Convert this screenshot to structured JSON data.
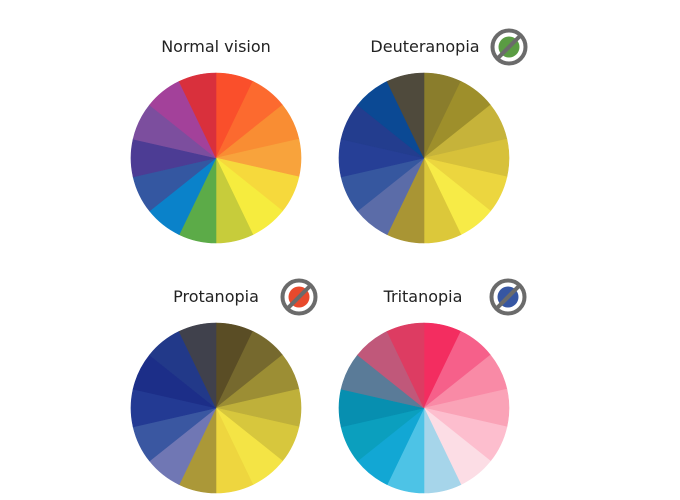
{
  "wheels": [
    {
      "title": "Normal vision",
      "badge": null,
      "colors": [
        "#fa4f2b",
        "#fc6a2f",
        "#f98d33",
        "#f8a33c",
        "#f6d93c",
        "#f6ec3e",
        "#c7cc3b",
        "#5cab48",
        "#0a82ca",
        "#3457a1",
        "#4c3c94",
        "#7c4e9e",
        "#a3419a",
        "#d9303c"
      ]
    },
    {
      "title": "Deuteranopia",
      "badge": {
        "icon": "deuteranopia-no-green-icon",
        "color": "#5a9c43"
      },
      "colors": [
        "#8a7d2c",
        "#9e8f2b",
        "#c6b33a",
        "#d7c13a",
        "#ecd63f",
        "#f7eb47",
        "#dcc83a",
        "#a99534",
        "#5b6ca8",
        "#36579f",
        "#263f96",
        "#233d8e",
        "#0b4994",
        "#4f4a3c"
      ]
    },
    {
      "title": "Protanopia",
      "badge": {
        "icon": "protanopia-no-red-icon",
        "color": "#e8492c"
      },
      "colors": [
        "#5a4d25",
        "#76692e",
        "#9c8e34",
        "#bfb03a",
        "#d7c73d",
        "#f4e445",
        "#eed63f",
        "#ab9838",
        "#7077b4",
        "#3a57a1",
        "#233a93",
        "#1c2e88",
        "#223989",
        "#40414c"
      ]
    },
    {
      "title": "Tritanopia",
      "badge": {
        "icon": "tritanopia-no-blue-icon",
        "color": "#3656a3"
      },
      "colors": [
        "#f32d60",
        "#f6608a",
        "#f98aa6",
        "#faa3b7",
        "#fdbece",
        "#fcdde5",
        "#a6d5ea",
        "#4dc3e6",
        "#12a7d4",
        "#0b9fbe",
        "#078fb0",
        "#5a7b98",
        "#c0587a",
        "#dd3c62"
      ]
    }
  ]
}
